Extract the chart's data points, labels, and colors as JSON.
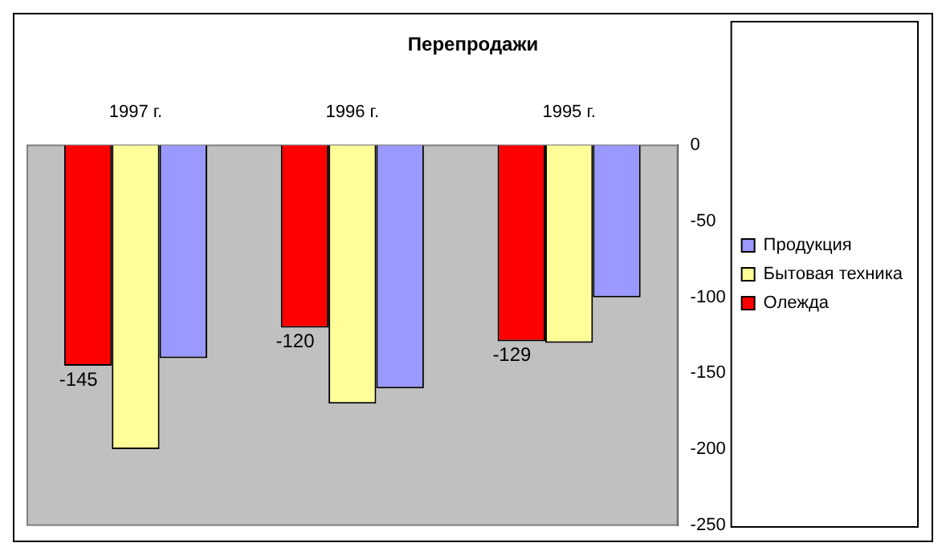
{
  "chart_data": {
    "type": "bar",
    "title": "Перепродажи",
    "categories": [
      "1997 г.",
      "1996 г.",
      "1995 г."
    ],
    "series": [
      {
        "name": "Олежда",
        "color": "#ff0000",
        "values": [
          -145,
          -120,
          -129
        ],
        "value_labels": [
          "-145",
          "-120",
          "-129"
        ]
      },
      {
        "name": "Бытовая техника",
        "color": "#ffff99",
        "values": [
          -200,
          -170,
          -130
        ]
      },
      {
        "name": "Продукция",
        "color": "#9999ff",
        "values": [
          -140,
          -160,
          -100
        ]
      }
    ],
    "ylim": [
      -250,
      0
    ],
    "yticks": [
      0,
      -50,
      -100,
      -150,
      -200,
      -250
    ],
    "grid": false,
    "legend": "right"
  }
}
